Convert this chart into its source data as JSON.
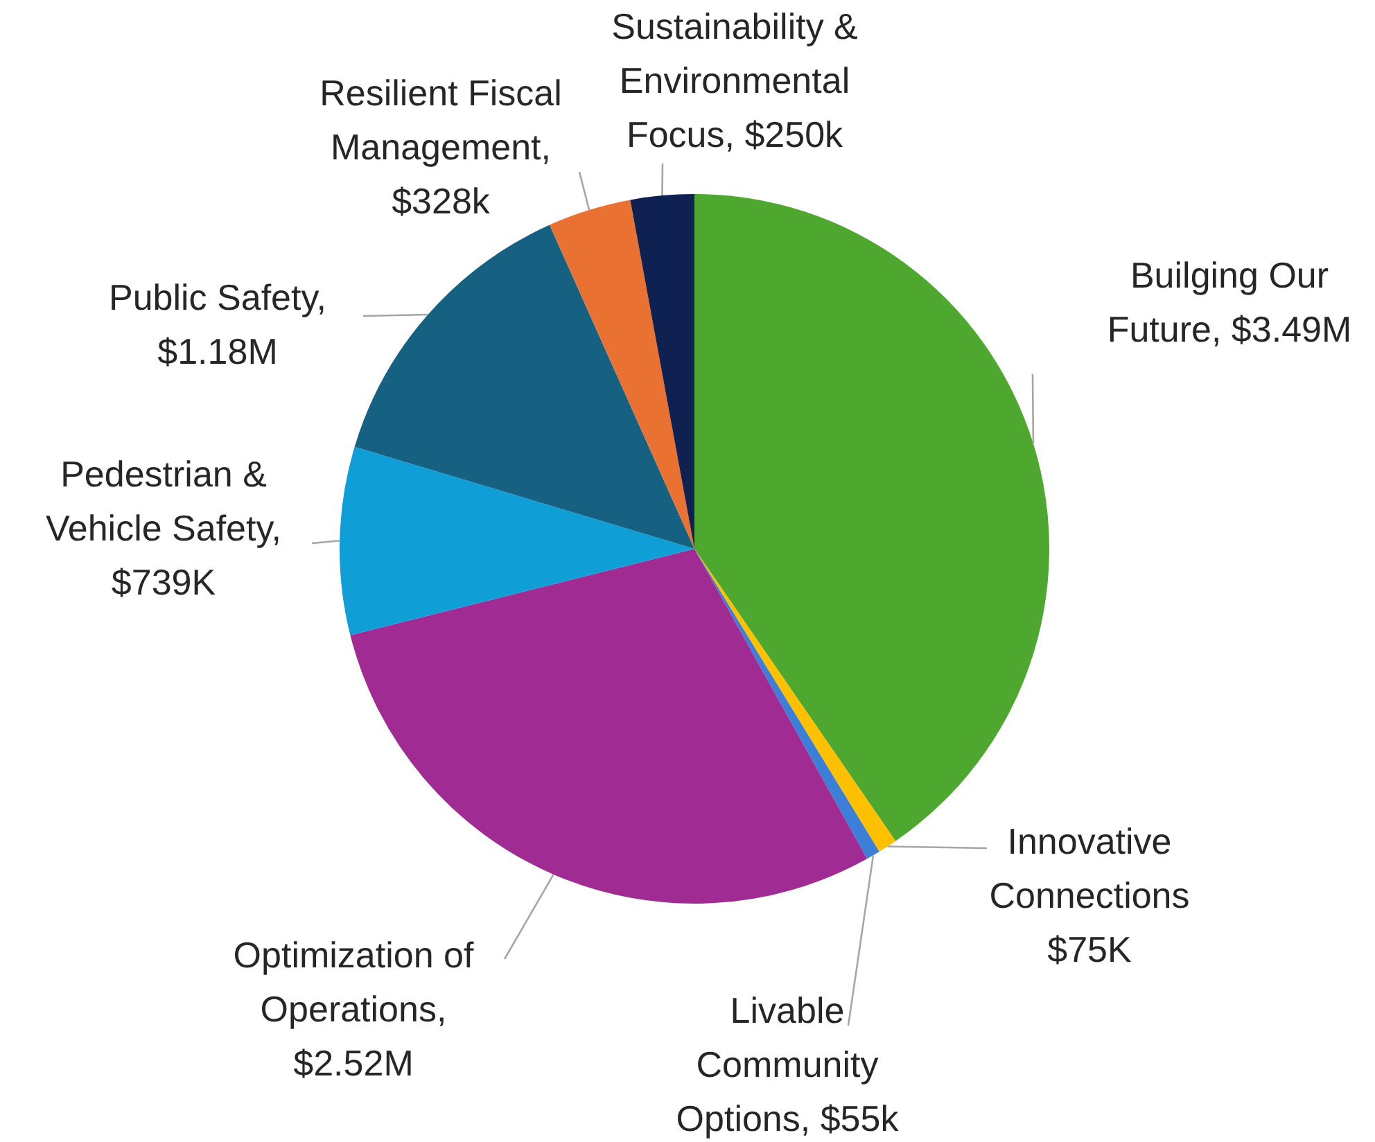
{
  "chart_data": {
    "type": "pie",
    "categories": [
      "Builging Our Future, $3.49M",
      "Innovative Connections $75K",
      "Livable Community Options, $55k",
      "Optimization of Operations, $2.52M",
      "Pedestrian & Vehicle Safety, $739K",
      "Public Safety, $1.18M",
      "Resilient Fiscal Management, $328k",
      "Sustainability & Environmental Focus, $250k"
    ],
    "values": [
      3490000,
      75000,
      55000,
      2520000,
      739000,
      1180000,
      328000,
      250000
    ],
    "colors": [
      "#4ea72e",
      "#ffc000",
      "#3c7fd6",
      "#a02b93",
      "#0f9ed5",
      "#166082",
      "#e97132",
      "#0e2150"
    ],
    "legend": false
  }
}
